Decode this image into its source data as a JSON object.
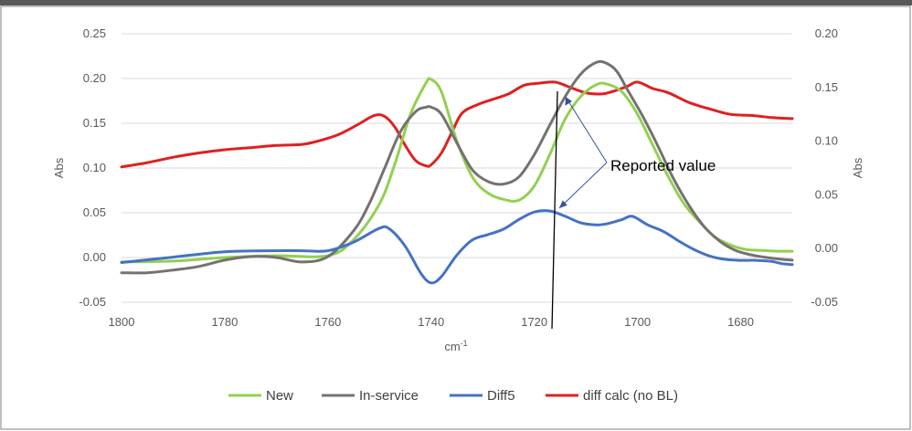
{
  "chart_data": {
    "type": "line",
    "title": "",
    "xlabel": "cm",
    "xlabel_sup": "-1",
    "ylabel_left": "Abs",
    "ylabel_right": "Abs",
    "x_reversed": true,
    "xlim": [
      1800,
      1670
    ],
    "ylim_left": [
      -0.05,
      0.25
    ],
    "ylim_right": [
      -0.05,
      0.2
    ],
    "x_ticks": [
      "1800",
      "1780",
      "1760",
      "1740",
      "1720",
      "1700",
      "1680"
    ],
    "y_ticks_left": [
      "0.25",
      "0.20",
      "0.15",
      "0.10",
      "0.05",
      "0.00",
      "-0.05"
    ],
    "y_ticks_right": [
      "0.20",
      "0.15",
      "0.10",
      "0.05",
      "0.00",
      "-0.05"
    ],
    "grid": "horizontal",
    "legend": "bottom",
    "series": [
      {
        "name": "New",
        "color": "#92d050",
        "axis": "left",
        "x": [
          1800,
          1790,
          1780,
          1770,
          1760,
          1755,
          1750,
          1747,
          1744,
          1741,
          1740,
          1738,
          1735,
          1732,
          1729,
          1726,
          1723,
          1720,
          1717,
          1714,
          1711,
          1708,
          1706,
          1703,
          1700,
          1697,
          1694,
          1691,
          1688,
          1685,
          1682,
          1679,
          1676,
          1673,
          1670
        ],
        "y": [
          -0.005,
          -0.004,
          0.0,
          0.002,
          0.002,
          0.02,
          0.06,
          0.105,
          0.16,
          0.195,
          0.199,
          0.185,
          0.13,
          0.09,
          0.072,
          0.065,
          0.064,
          0.08,
          0.115,
          0.155,
          0.18,
          0.193,
          0.194,
          0.185,
          0.16,
          0.125,
          0.09,
          0.06,
          0.04,
          0.023,
          0.014,
          0.009,
          0.008,
          0.007,
          0.007
        ]
      },
      {
        "name": "In-service",
        "color": "#767171",
        "axis": "left",
        "x": [
          1800,
          1795,
          1790,
          1785,
          1780,
          1775,
          1770,
          1765,
          1760,
          1755,
          1752,
          1749,
          1746,
          1743,
          1741,
          1740,
          1738,
          1735,
          1732,
          1729,
          1726,
          1723,
          1720,
          1717,
          1714,
          1711,
          1708,
          1706,
          1704,
          1702,
          1699,
          1696,
          1693,
          1690,
          1687,
          1684,
          1681,
          1678,
          1675,
          1672,
          1670
        ],
        "y": [
          -0.017,
          -0.017,
          -0.014,
          -0.01,
          -0.003,
          0.001,
          0.0,
          -0.005,
          0.001,
          0.03,
          0.06,
          0.1,
          0.14,
          0.163,
          0.168,
          0.168,
          0.16,
          0.128,
          0.098,
          0.085,
          0.082,
          0.09,
          0.115,
          0.148,
          0.18,
          0.205,
          0.218,
          0.217,
          0.208,
          0.188,
          0.158,
          0.124,
          0.088,
          0.058,
          0.034,
          0.018,
          0.008,
          0.003,
          0.0,
          -0.002,
          -0.003
        ]
      },
      {
        "name": "Diff5",
        "color": "#4472c4",
        "axis": "right",
        "x": [
          1800,
          1790,
          1780,
          1770,
          1765,
          1760,
          1755,
          1750,
          1748,
          1745,
          1742,
          1740,
          1738,
          1735,
          1732,
          1729,
          1726,
          1723,
          1720,
          1717,
          1714,
          1711,
          1708,
          1706,
          1703,
          1701,
          1698,
          1695,
          1692,
          1689,
          1686,
          1683,
          1680,
          1677,
          1674,
          1672,
          1670
        ],
        "y": [
          -0.013,
          -0.008,
          -0.003,
          -0.002,
          -0.002,
          -0.002,
          0.006,
          0.019,
          0.018,
          0.002,
          -0.023,
          -0.032,
          -0.026,
          -0.006,
          0.008,
          0.013,
          0.018,
          0.027,
          0.034,
          0.035,
          0.03,
          0.024,
          0.022,
          0.023,
          0.027,
          0.03,
          0.022,
          0.016,
          0.007,
          -0.001,
          -0.007,
          -0.01,
          -0.011,
          -0.011,
          -0.012,
          -0.014,
          -0.015
        ]
      },
      {
        "name": "diff calc (no BL)",
        "color": "#e02020",
        "axis": "right",
        "x": [
          1800,
          1795,
          1790,
          1785,
          1780,
          1775,
          1770,
          1765,
          1762,
          1758,
          1754,
          1751,
          1749,
          1747,
          1745,
          1743,
          1741,
          1740,
          1738,
          1736,
          1734,
          1731,
          1728,
          1725,
          1722,
          1719,
          1716,
          1713,
          1710,
          1707,
          1705,
          1702,
          1700,
          1697,
          1694,
          1690,
          1686,
          1682,
          1678,
          1674,
          1670
        ],
        "y": [
          0.076,
          0.08,
          0.085,
          0.089,
          0.092,
          0.094,
          0.096,
          0.097,
          0.1,
          0.106,
          0.116,
          0.124,
          0.123,
          0.113,
          0.096,
          0.082,
          0.077,
          0.078,
          0.089,
          0.108,
          0.126,
          0.134,
          0.139,
          0.144,
          0.152,
          0.154,
          0.155,
          0.15,
          0.145,
          0.144,
          0.146,
          0.151,
          0.155,
          0.149,
          0.145,
          0.136,
          0.13,
          0.125,
          0.124,
          0.122,
          0.121
        ]
      }
    ],
    "annotations": [
      {
        "text": "Reported value"
      }
    ]
  }
}
